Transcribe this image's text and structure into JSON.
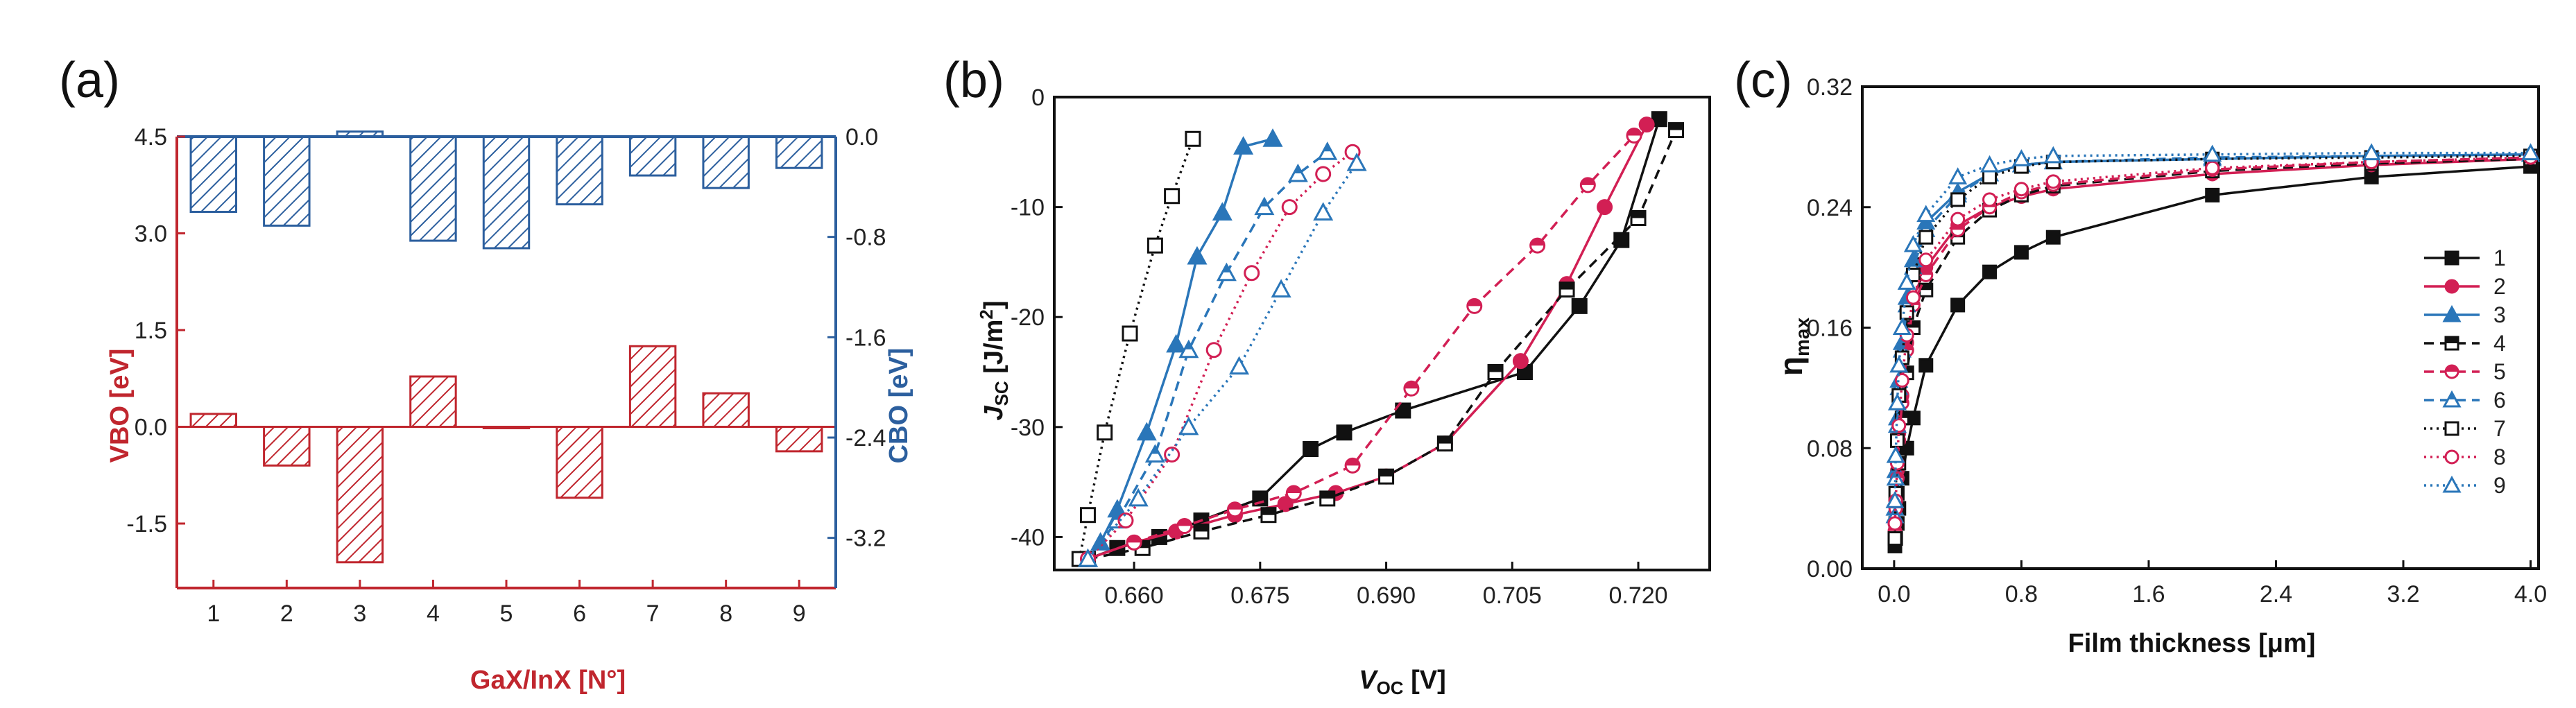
{
  "colors": {
    "red": "#c0262e",
    "blue": "#2c5f9e",
    "black": "#111111",
    "pink": "#d21f54",
    "steelblue": "#2a76b9",
    "grey": "#555555"
  },
  "chart_data": [
    {
      "panel": "(a)",
      "type": "bar",
      "title": "",
      "xlabel": "GaX/InX [N°]",
      "ylabel": "VBO [eV]",
      "y2label": "CBO [eV]",
      "categories": [
        "1",
        "2",
        "3",
        "4",
        "5",
        "6",
        "7",
        "8",
        "9"
      ],
      "series": [
        {
          "name": "VBO",
          "axis": "left",
          "values": [
            0.2,
            -0.6,
            -2.1,
            0.78,
            -0.02,
            -1.1,
            1.25,
            0.52,
            -0.38
          ]
        },
        {
          "name": "CBO",
          "axis": "right",
          "values": [
            -0.6,
            -0.71,
            0.04,
            -0.83,
            -0.89,
            -0.54,
            -0.31,
            -0.41,
            -0.25
          ]
        }
      ],
      "ylim": [
        -2.5,
        4.5
      ],
      "y2lim": [
        -3.6,
        0.0
      ],
      "yticks": [
        "4.5",
        "3.0",
        "1.5",
        "0.0",
        "-1.5"
      ],
      "ytick_values": [
        4.5,
        3.0,
        1.5,
        0.0,
        -1.5
      ],
      "y2ticks": [
        "0.0",
        "-0.8",
        "-1.6",
        "-2.4",
        "-3.2"
      ],
      "y2tick_values": [
        0.0,
        -0.8,
        -1.6,
        -2.4,
        -3.2
      ]
    },
    {
      "panel": "(b)",
      "type": "line",
      "title": "",
      "xlabel_main": "V",
      "xlabel_sub": "OC",
      "xlabel_unit": " [V]",
      "ylabel_main": "J",
      "ylabel_sub": "SC",
      "ylabel_unit": " [J/m",
      "ylabel_sup": "2",
      "ylabel_close": "]",
      "xlim": [
        0.6505,
        0.7285
      ],
      "ylim": [
        -43,
        0
      ],
      "xticks": [
        "0.660",
        "0.675",
        "0.690",
        "0.705",
        "0.720"
      ],
      "xtick_values": [
        0.66,
        0.675,
        0.69,
        0.705,
        0.72
      ],
      "yticks": [
        "0",
        "-10",
        "-20",
        "-30",
        "-40"
      ],
      "ytick_values": [
        0,
        -10,
        -20,
        -30,
        -40
      ],
      "series": [
        {
          "name": "1",
          "x": [
            0.6545,
            0.658,
            0.663,
            0.668,
            0.675,
            0.681,
            0.685,
            0.692,
            0.7065,
            0.713,
            0.718,
            0.7225
          ],
          "y": [
            -42,
            -41,
            -40,
            -38.5,
            -36.5,
            -32,
            -30.5,
            -28.5,
            -25,
            -19,
            -13,
            -2
          ]
        },
        {
          "name": "2",
          "x": [
            0.6545,
            0.66,
            0.665,
            0.672,
            0.678,
            0.684,
            0.69,
            0.697,
            0.706,
            0.7115,
            0.716,
            0.721
          ],
          "y": [
            -42,
            -40.5,
            -39.5,
            -38,
            -37,
            -36,
            -34.5,
            -31.5,
            -24,
            -17,
            -10,
            -2.5
          ]
        },
        {
          "name": "3",
          "x": [
            0.6545,
            0.656,
            0.658,
            0.6615,
            0.665,
            0.6675,
            0.6705,
            0.673,
            0.6765
          ],
          "y": [
            -42,
            -40.5,
            -37.5,
            -30.5,
            -22.5,
            -14.5,
            -10.5,
            -4.5,
            -3.8
          ]
        },
        {
          "name": "4",
          "x": [
            0.6545,
            0.661,
            0.668,
            0.676,
            0.683,
            0.69,
            0.697,
            0.703,
            0.7115,
            0.72,
            0.7245
          ],
          "y": [
            -42,
            -41,
            -39.5,
            -38,
            -36.5,
            -34.5,
            -31.5,
            -25,
            -17.5,
            -11,
            -3
          ]
        },
        {
          "name": "5",
          "x": [
            0.6545,
            0.66,
            0.666,
            0.672,
            0.679,
            0.686,
            0.693,
            0.7005,
            0.708,
            0.714,
            0.7195
          ],
          "y": [
            -42,
            -40.5,
            -39,
            -37.5,
            -36,
            -33.5,
            -26.5,
            -19,
            -13.5,
            -8,
            -3.5
          ]
        },
        {
          "name": "6",
          "x": [
            0.6545,
            0.658,
            0.6625,
            0.6665,
            0.671,
            0.6755,
            0.6795,
            0.683
          ],
          "y": [
            -42,
            -38.5,
            -32.5,
            -23,
            -16,
            -10,
            -7,
            -5
          ]
        },
        {
          "name": "7",
          "x": [
            0.6535,
            0.6545,
            0.6565,
            0.6595,
            0.6625,
            0.6645,
            0.667
          ],
          "y": [
            -42,
            -38,
            -30.5,
            -21.5,
            -13.5,
            -9,
            -3.8
          ]
        },
        {
          "name": "8",
          "x": [
            0.6545,
            0.659,
            0.6645,
            0.6695,
            0.674,
            0.6785,
            0.6825,
            0.686
          ],
          "y": [
            -42,
            -38.5,
            -32.5,
            -23,
            -16,
            -10,
            -7,
            -5
          ]
        },
        {
          "name": "9",
          "x": [
            0.6545,
            0.6605,
            0.6665,
            0.6725,
            0.6775,
            0.6825,
            0.6865
          ],
          "y": [
            -42,
            -36.5,
            -30,
            -24.5,
            -17.5,
            -10.5,
            -6
          ]
        }
      ]
    },
    {
      "panel": "(c)",
      "type": "line",
      "title": "",
      "xlabel": "Film thickness [μm]",
      "ylabel_main": "η",
      "ylabel_sub": "max",
      "xlim": [
        -0.2,
        4.05
      ],
      "ylim": [
        0.0,
        0.32
      ],
      "xticks": [
        "0.0",
        "0.8",
        "1.6",
        "2.4",
        "3.2",
        "4.0"
      ],
      "xtick_values": [
        0.0,
        0.8,
        1.6,
        2.4,
        3.2,
        4.0
      ],
      "yticks": [
        "0.32",
        "0.24",
        "0.16",
        "0.08",
        "0.00"
      ],
      "ytick_values": [
        0.32,
        0.24,
        0.16,
        0.08,
        0.0
      ],
      "legend": [
        "1",
        "2",
        "3",
        "4",
        "5",
        "6",
        "7",
        "8",
        "9"
      ],
      "legend_position": "right",
      "series": [
        {
          "name": "1",
          "x": [
            0.005,
            0.01,
            0.02,
            0.03,
            0.05,
            0.08,
            0.12,
            0.2,
            0.4,
            0.6,
            0.8,
            1.0,
            2.0,
            3.0,
            4.0
          ],
          "y": [
            0.015,
            0.02,
            0.03,
            0.04,
            0.06,
            0.08,
            0.1,
            0.135,
            0.175,
            0.197,
            0.21,
            0.22,
            0.248,
            0.26,
            0.267
          ]
        },
        {
          "name": "2",
          "x": [
            0.005,
            0.01,
            0.02,
            0.03,
            0.05,
            0.08,
            0.12,
            0.2,
            0.4,
            0.6,
            0.8,
            1.0,
            2.0,
            3.0,
            4.0
          ],
          "y": [
            0.03,
            0.045,
            0.065,
            0.09,
            0.115,
            0.15,
            0.18,
            0.2,
            0.228,
            0.24,
            0.247,
            0.252,
            0.262,
            0.268,
            0.272
          ]
        },
        {
          "name": "3",
          "x": [
            0.005,
            0.01,
            0.02,
            0.03,
            0.05,
            0.08,
            0.12,
            0.2,
            0.4,
            0.6,
            0.8,
            1.0,
            2.0,
            3.0,
            4.0
          ],
          "y": [
            0.04,
            0.065,
            0.1,
            0.125,
            0.15,
            0.18,
            0.205,
            0.23,
            0.25,
            0.262,
            0.268,
            0.27,
            0.272,
            0.274,
            0.275
          ]
        },
        {
          "name": "4",
          "x": [
            0.005,
            0.01,
            0.02,
            0.03,
            0.05,
            0.08,
            0.12,
            0.2,
            0.4,
            0.6,
            0.8,
            1.0,
            2.0,
            3.0,
            4.0
          ],
          "y": [
            0.02,
            0.03,
            0.05,
            0.07,
            0.1,
            0.13,
            0.16,
            0.185,
            0.22,
            0.238,
            0.248,
            0.254,
            0.264,
            0.269,
            0.272
          ]
        },
        {
          "name": "5",
          "x": [
            0.005,
            0.01,
            0.02,
            0.03,
            0.05,
            0.08,
            0.12,
            0.2,
            0.4,
            0.6,
            0.8,
            1.0,
            2.0,
            3.0,
            4.0
          ],
          "y": [
            0.025,
            0.04,
            0.06,
            0.085,
            0.11,
            0.145,
            0.175,
            0.195,
            0.225,
            0.24,
            0.25,
            0.255,
            0.265,
            0.27,
            0.273
          ]
        },
        {
          "name": "6",
          "x": [
            0.005,
            0.01,
            0.02,
            0.03,
            0.05,
            0.08,
            0.12,
            0.2,
            0.4,
            0.6,
            0.8,
            1.0,
            2.0,
            3.0,
            4.0
          ],
          "y": [
            0.035,
            0.06,
            0.095,
            0.12,
            0.145,
            0.175,
            0.2,
            0.225,
            0.248,
            0.262,
            0.268,
            0.27,
            0.273,
            0.274,
            0.275
          ]
        },
        {
          "name": "7",
          "x": [
            0.005,
            0.01,
            0.02,
            0.03,
            0.05,
            0.08,
            0.12,
            0.2,
            0.4,
            0.6,
            0.8,
            1.0,
            2.0,
            3.0,
            4.0
          ],
          "y": [
            0.02,
            0.05,
            0.085,
            0.115,
            0.14,
            0.17,
            0.195,
            0.22,
            0.245,
            0.26,
            0.267,
            0.27,
            0.272,
            0.273,
            0.274
          ]
        },
        {
          "name": "8",
          "x": [
            0.005,
            0.01,
            0.02,
            0.03,
            0.05,
            0.08,
            0.12,
            0.2,
            0.4,
            0.6,
            0.8,
            1.0,
            2.0,
            3.0,
            4.0
          ],
          "y": [
            0.03,
            0.045,
            0.07,
            0.095,
            0.125,
            0.155,
            0.18,
            0.205,
            0.232,
            0.245,
            0.252,
            0.257,
            0.266,
            0.27,
            0.273
          ]
        },
        {
          "name": "9",
          "x": [
            0.005,
            0.01,
            0.02,
            0.03,
            0.05,
            0.08,
            0.12,
            0.2,
            0.4,
            0.6,
            0.8,
            1.0,
            2.0,
            3.0,
            4.0
          ],
          "y": [
            0.045,
            0.075,
            0.11,
            0.135,
            0.16,
            0.19,
            0.215,
            0.235,
            0.26,
            0.268,
            0.272,
            0.274,
            0.275,
            0.276,
            0.276
          ]
        }
      ]
    }
  ]
}
